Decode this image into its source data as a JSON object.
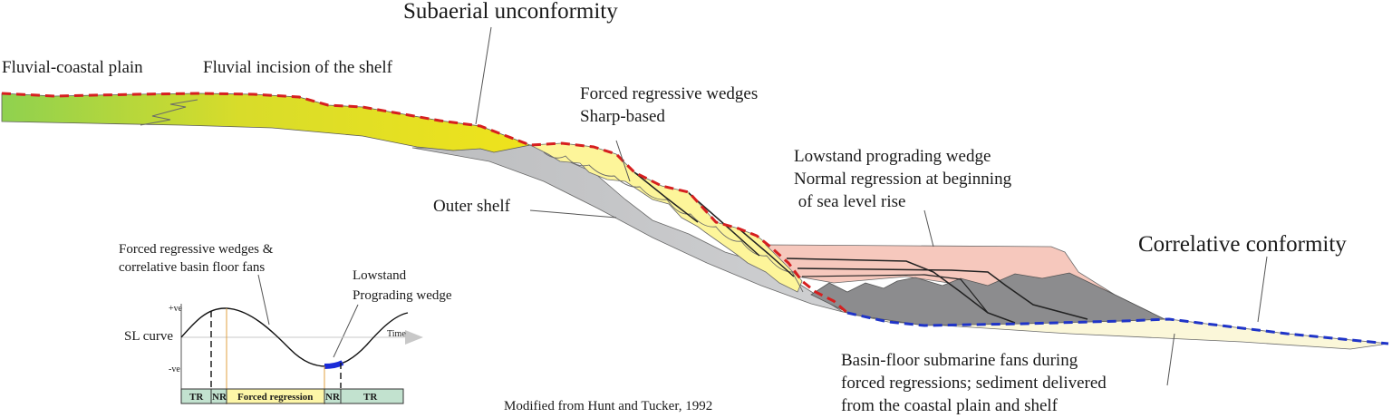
{
  "labels": {
    "subaerial_unconformity": "Subaerial unconformity",
    "fluvial_coastal_plain": "Fluvial-coastal plain",
    "fluvial_incision": "Fluvial incision of the shelf",
    "forced_regressive_wedges": "Forced regressive wedges",
    "sharp_based": "Sharp-based",
    "lowstand_wedge_line1": "Lowstand prograding wedge",
    "lowstand_wedge_line2": "Normal regression at beginning",
    "lowstand_wedge_line3": " of sea level rise",
    "outer_shelf": "Outer shelf",
    "correlative_conformity": "Correlative conformity",
    "basin_floor_line1": "Basin-floor submarine fans during",
    "basin_floor_line2": "forced regressions; sediment delivered",
    "basin_floor_line3": "from the coastal plain and shelf",
    "credit": "Modified from Hunt and Tucker, 1992"
  },
  "inset": {
    "frw_line1": "Forced regressive wedges &",
    "frw_line2": "correlative basin floor fans",
    "lowstand_line1": "Lowstand",
    "lowstand_line2": "Prograding wedge",
    "sl_curve": "SL curve",
    "plus_ve": "+ve",
    "minus_ve": "-ve",
    "time": "Time",
    "bar": {
      "tr_left": "TR",
      "nr_left": "NR",
      "forced_regression": "Forced regression",
      "nr_right": "NR",
      "tr_right": "TR"
    }
  },
  "colors": {
    "coastal_plain_green": "#8fd14f",
    "coastal_plain_yellow": "#e9df1e",
    "forced_wedge_yellow": "#fdf59a",
    "outer_shelf_grey": "#c3c4c6",
    "lowstand_pink": "#f6c8bd",
    "lowstand_dark_grey": "#8c8c8e",
    "basin_fan_cream": "#fbf7d9",
    "subaerial_unconformity_red": "#d61f1f",
    "correlative_conformity_blue": "#1f34c8",
    "tr_green": "#c2e2cf",
    "forced_regression_yellow": "#fdf6a8",
    "lowstand_highlight_blue": "#1a2bd8"
  }
}
